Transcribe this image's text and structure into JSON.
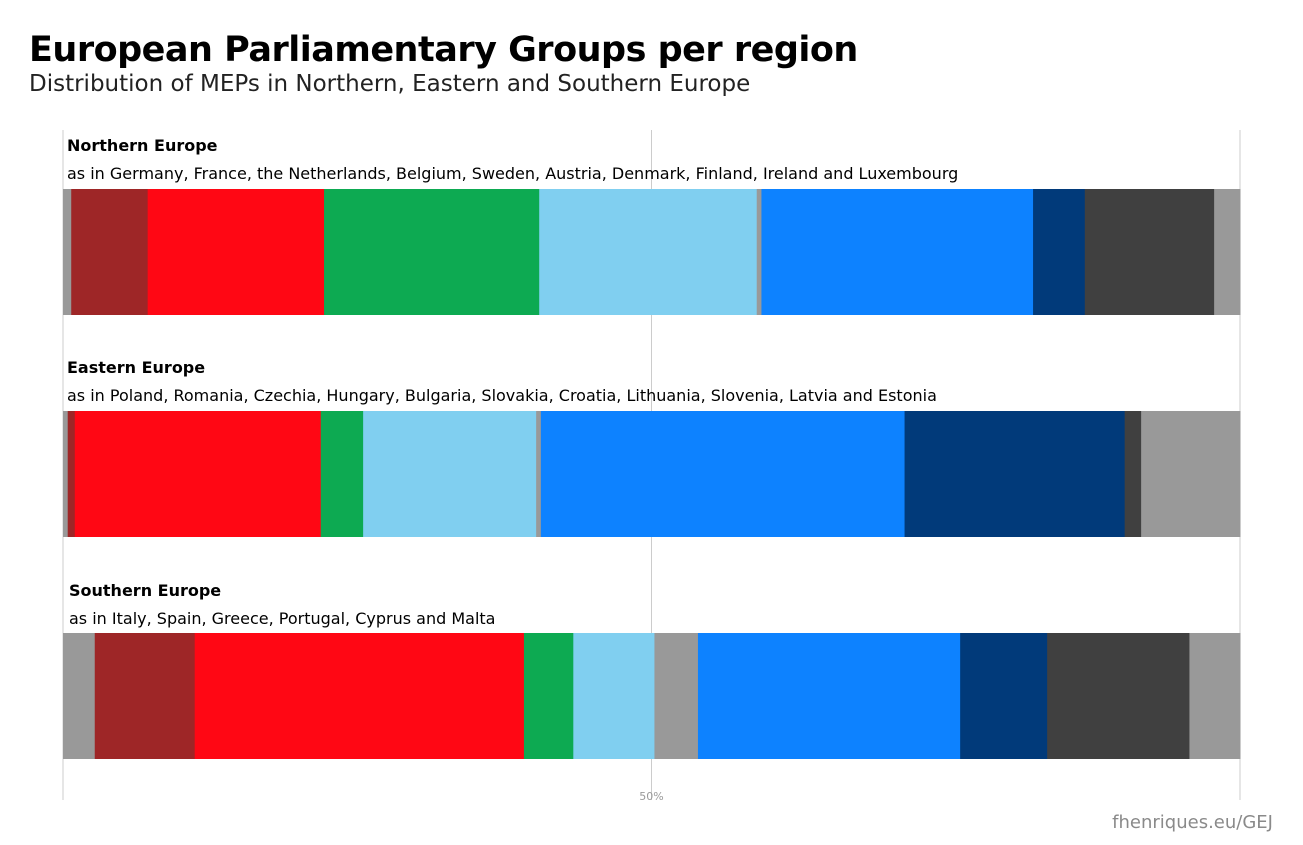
{
  "title": "European Parliamentary Groups per region",
  "subtitle": "Distribution of MEPs in Northern, Eastern and Southern Europe",
  "credit": "fhenriques.eu/GEJ",
  "chart_data": {
    "type": "bar",
    "orientation": "horizontal",
    "stacked": "100%",
    "xaxis": {
      "tick_labels": [
        "50%"
      ],
      "ticks": [
        0,
        50,
        100
      ],
      "grid": true
    },
    "legend": null,
    "colors": [
      "#999999",
      "#9e2627",
      "#ff0714",
      "#0daa52",
      "#80cff0",
      "#999999",
      "#0d82ff",
      "#013a7a",
      "#404040",
      "#999999"
    ],
    "panels": [
      {
        "title": "Northern Europe",
        "note": "as in Germany, France, the Netherlands, Belgium, Sweden, Austria, Denmark, Finland, Ireland and Luxembourg",
        "values": [
          0.7,
          6.5,
          15.0,
          18.3,
          18.5,
          0.4,
          23.1,
          4.4,
          11.0,
          2.2
        ]
      },
      {
        "title": "Eastern Europe",
        "note": "as in Poland, Romania, Czechia, Hungary, Bulgaria, Slovakia, Croatia, Lithuania, Slovenia, Latvia and Estonia",
        "values": [
          0.4,
          0.6,
          20.9,
          3.6,
          14.7,
          0.4,
          30.9,
          18.7,
          1.4,
          8.4
        ]
      },
      {
        "title": "Southern Europe",
        "note": "as in Italy, Spain, Greece, Portugal, Cyprus and Malta",
        "values": [
          2.7,
          8.5,
          28.0,
          4.2,
          6.9,
          3.7,
          22.3,
          7.4,
          12.1,
          4.3
        ]
      }
    ]
  }
}
